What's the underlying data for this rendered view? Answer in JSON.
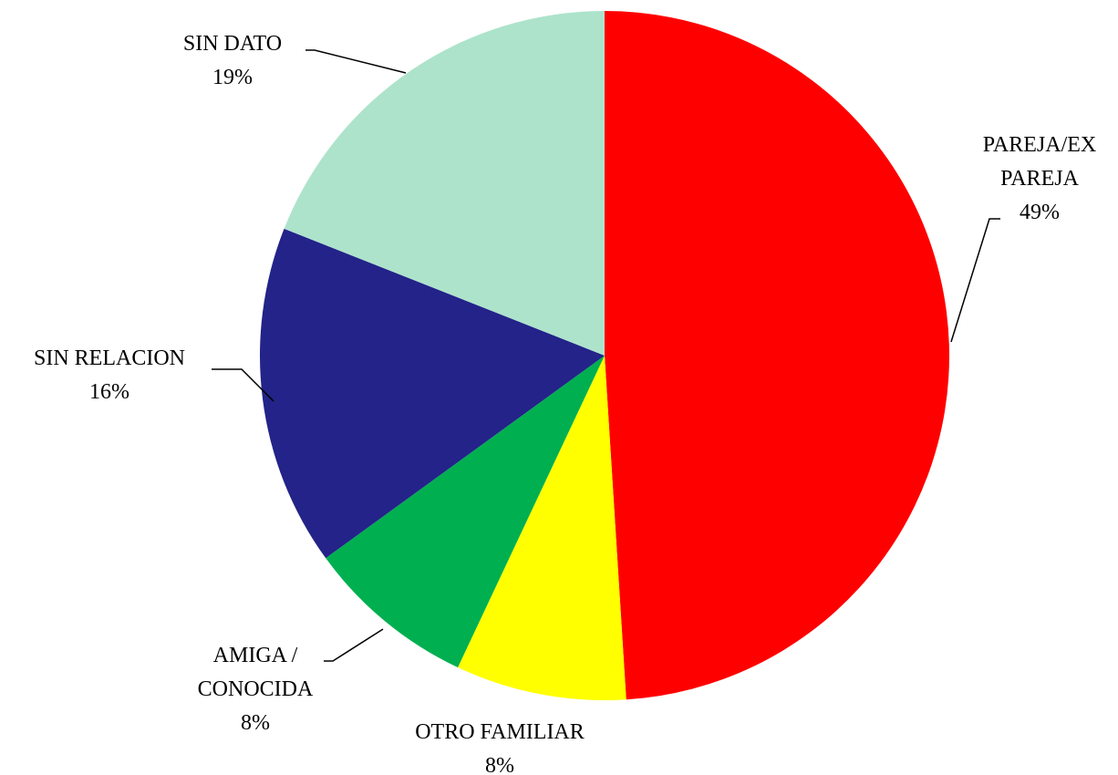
{
  "chart_data": {
    "type": "pie",
    "categories": [
      "PAREJA/EX PAREJA",
      "OTRO FAMILIAR",
      "AMIGA / CONOCIDA",
      "SIN RELACION",
      "SIN DATO"
    ],
    "values": [
      49,
      8,
      8,
      16,
      19
    ],
    "value_labels": [
      "49%",
      "8%",
      "8%",
      "16%",
      "19%"
    ],
    "colors": [
      "#ff0000",
      "#ffff00",
      "#00b050",
      "#232389",
      "#ade3cb"
    ]
  }
}
